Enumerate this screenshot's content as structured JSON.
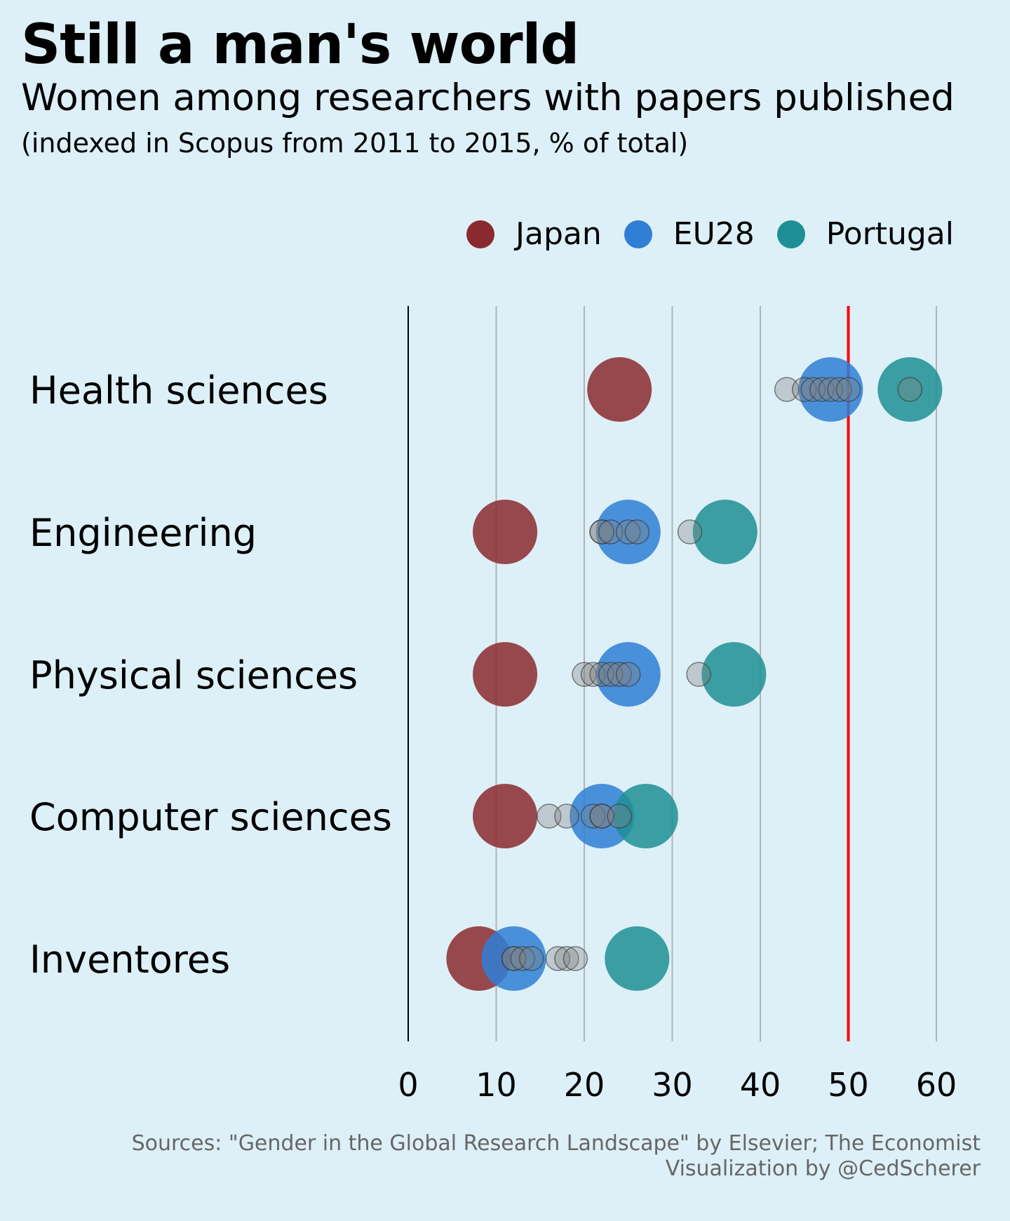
{
  "header": {
    "title": "Still a man's world",
    "subtitle": "Women among researchers with papers published",
    "note": "(indexed in Scopus from 2011 to 2015, % of total)"
  },
  "legend": [
    {
      "label": "Japan",
      "color": "#8b2a2e"
    },
    {
      "label": "EU28",
      "color": "#2f7fd6"
    },
    {
      "label": "Portugal",
      "color": "#1e8f94"
    }
  ],
  "caption": {
    "sources": "Sources: \"Gender in the Global Research Landscape\" by Elsevier; The Economist",
    "credit": "Visualization by @CedScherer"
  },
  "chart_data": {
    "type": "scatter",
    "xlim": [
      0,
      60
    ],
    "x_ticks": [
      0,
      10,
      20,
      30,
      40,
      50,
      60
    ],
    "reference_line": {
      "x": 50,
      "color": "#ff0000"
    },
    "grid": true,
    "legend_position": "top-right",
    "categories": [
      "Health sciences",
      "Engineering",
      "Physical sciences",
      "Computer sciences",
      "Inventores"
    ],
    "series": [
      {
        "name": "Japan",
        "color": "#8b2a2e",
        "values": [
          24,
          11,
          11,
          11,
          8
        ]
      },
      {
        "name": "EU28",
        "color": "#2f7fd6",
        "values": [
          48,
          25,
          25,
          22,
          12
        ]
      },
      {
        "name": "Portugal",
        "color": "#1e8f94",
        "values": [
          57,
          36,
          37,
          27,
          26
        ]
      }
    ],
    "other_countries": [
      [
        43,
        45,
        46,
        47,
        48,
        49,
        50,
        57
      ],
      [
        22,
        22,
        23,
        25,
        26,
        32
      ],
      [
        20,
        21,
        22,
        23,
        24,
        25,
        33
      ],
      [
        16,
        18,
        21,
        22,
        22,
        24
      ],
      [
        12,
        12,
        13,
        14,
        17,
        18,
        19
      ]
    ]
  }
}
